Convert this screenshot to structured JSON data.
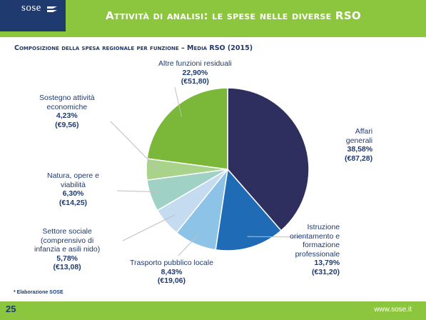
{
  "header": {
    "logo": "sose",
    "title": "Attività di analisi: le spese nelle diverse RSO",
    "colors": {
      "bar": "#8cc63f",
      "logo_bg": "#1f3a6e",
      "text": "#ffffff"
    }
  },
  "footer": {
    "page_number": "25",
    "url": "www.sose.it",
    "footnote": "* Elaborazione SOSE"
  },
  "chart_data": {
    "type": "pie",
    "title": "Composizione della spesa regionale per funzione – Media RSO (2015)",
    "start_angle_deg": 0,
    "direction": "clockwise",
    "slices": [
      {
        "label": "Affari generali",
        "label_lines": [
          "Affari",
          "generali"
        ],
        "percent": 38.58,
        "percent_text": "38,58%",
        "value_text": "(€87,28)",
        "value": 87.28,
        "color": "#2e2f5e"
      },
      {
        "label": "Istruzione orientamento e formazione professionale",
        "label_lines": [
          "Istruzione",
          "orientamento e",
          "formazione",
          "professionale"
        ],
        "percent": 13.79,
        "percent_text": "13,79%",
        "value_text": "(€31,20)",
        "value": 31.2,
        "color": "#1f6bb5"
      },
      {
        "label": "Trasporto pubblico locale",
        "label_lines": [
          "Trasporto pubblico locale"
        ],
        "percent": 8.43,
        "percent_text": "8,43%",
        "value_text": "(€19,06)",
        "value": 19.06,
        "color": "#8ec3e8"
      },
      {
        "label": "Settore sociale (comprensivo di infanzia e asili nido)",
        "label_lines": [
          "Settore sociale",
          "(comprensivo di",
          "infanzia e asili nido)"
        ],
        "percent": 5.78,
        "percent_text": "5,78%",
        "value_text": "(€13,08)",
        "value": 13.08,
        "color": "#c5dcf0"
      },
      {
        "label": "Natura, opere e viabilità",
        "label_lines": [
          "Natura, opere e",
          "viabilità"
        ],
        "percent": 6.3,
        "percent_text": "6,30%",
        "value_text": "(€14,25)",
        "value": 14.25,
        "color": "#9fd1c5"
      },
      {
        "label": "Sostegno attività economiche",
        "label_lines": [
          "Sostegno attività",
          "economiche"
        ],
        "percent": 4.23,
        "percent_text": "4,23%",
        "value_text": "(€9,56)",
        "value": 9.56,
        "color": "#a9d38a"
      },
      {
        "label": "Altre funzioni residuali",
        "label_lines": [
          "Altre funzioni residuali"
        ],
        "percent": 22.9,
        "percent_text": "22,90%",
        "value_text": "(€51,80)",
        "value": 51.8,
        "color": "#7bb83a"
      }
    ]
  }
}
